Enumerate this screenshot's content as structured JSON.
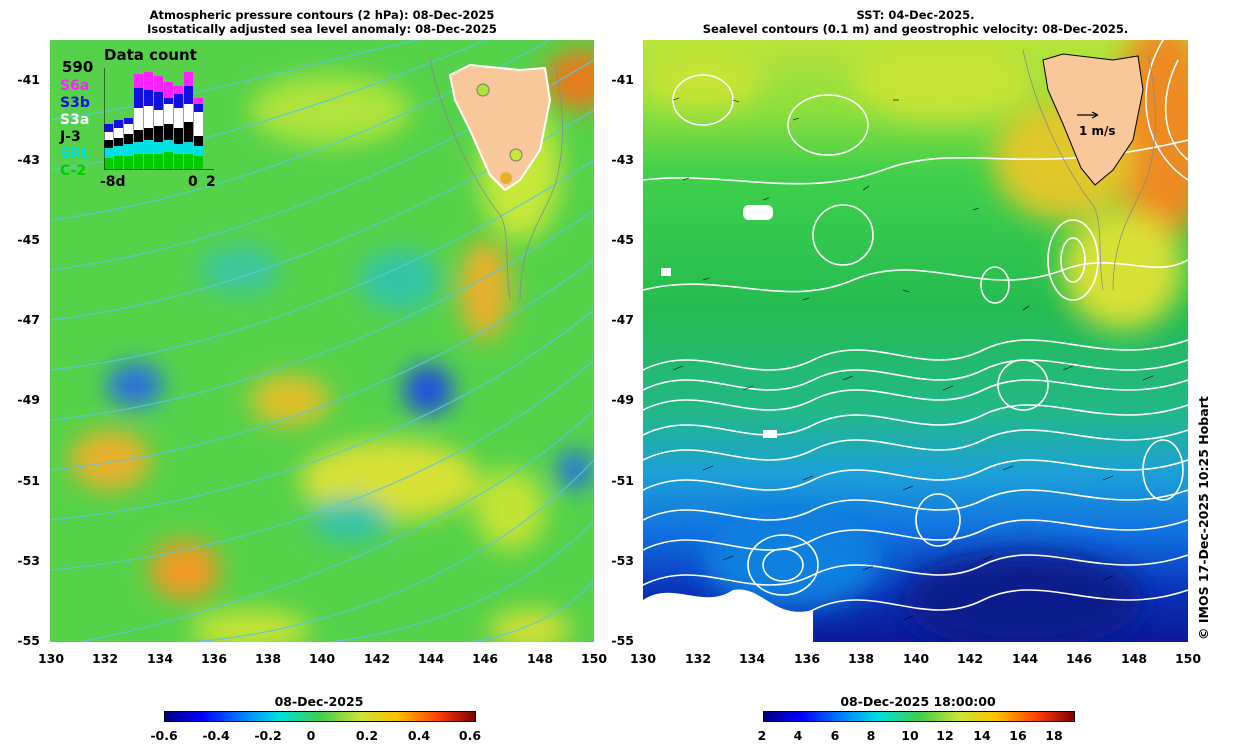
{
  "left_panel": {
    "title_line1": "Atmospheric pressure contours (2 hPa): 08-Dec-2025",
    "title_line2": "Isostatically adjusted sea level anomaly: 08-Dec-2025",
    "inset": {
      "header": "Data count",
      "count": "590",
      "satellites": [
        {
          "label": "S6a",
          "color": "#ff22ff"
        },
        {
          "label": "S3b",
          "color": "#1010e0"
        },
        {
          "label": "S3a",
          "color": "#ffffff"
        },
        {
          "label": "J-3",
          "color": "#000000"
        },
        {
          "label": "SRL",
          "color": "#00e0e0"
        },
        {
          "label": "C-2",
          "color": "#00cc00"
        }
      ],
      "axis_left": "-8d",
      "axis_mid": "0",
      "axis_right": "2"
    },
    "colorbar": {
      "title": "08-Dec-2025",
      "ticks": [
        "-0.6",
        "-0.4",
        "-0.2",
        "0",
        "0.2",
        "0.4",
        "0.6"
      ]
    }
  },
  "right_panel": {
    "title_line1": "SST: 04-Dec-2025.",
    "title_line2": "Sealevel contours (0.1 m) and geostrophic velocity: 08-Dec-2025.",
    "velocity_scale": "1 m/s",
    "colorbar": {
      "title": "08-Dec-2025 18:00:00",
      "ticks": [
        "2",
        "4",
        "6",
        "8",
        "10",
        "12",
        "14",
        "16",
        "18"
      ]
    }
  },
  "axes": {
    "y_ticks": [
      "-41",
      "-43",
      "-45",
      "-47",
      "-49",
      "-51",
      "-53",
      "-55"
    ],
    "x_ticks": [
      "130",
      "132",
      "134",
      "136",
      "138",
      "140",
      "142",
      "144",
      "146",
      "148",
      "150"
    ],
    "lat_range": [
      -55,
      -40
    ],
    "lon_range": [
      130,
      150
    ]
  },
  "credit": "© IMOS 17-Dec-2025 10:25 Hobart",
  "colors": {
    "land": "#f8c89a",
    "contour_left": "#59c7e0",
    "contour_right": "#ffffff"
  }
}
